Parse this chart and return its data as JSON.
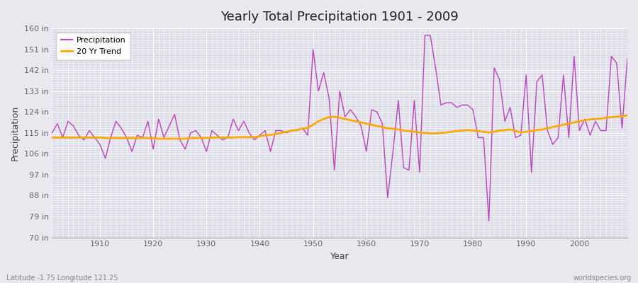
{
  "title": "Yearly Total Precipitation 1901 - 2009",
  "xlabel": "Year",
  "ylabel": "Precipitation",
  "bottom_left_label": "Latitude -1.75 Longitude 121.25",
  "bottom_right_label": "worldspecies.org",
  "precip_color": "#bb44bb",
  "trend_color": "#ffaa00",
  "fig_bg_color": "#e8e8ee",
  "plot_bg_color": "#dcdce8",
  "grid_color": "#ffffff",
  "ytick_labels": [
    "70 in",
    "79 in",
    "88 in",
    "97 in",
    "106 in",
    "115 in",
    "124 in",
    "133 in",
    "142 in",
    "151 in",
    "160 in"
  ],
  "ytick_values": [
    70,
    79,
    88,
    97,
    106,
    115,
    124,
    133,
    142,
    151,
    160
  ],
  "ylim": [
    70,
    160
  ],
  "xlim": [
    1901,
    2009
  ],
  "years": [
    1901,
    1902,
    1903,
    1904,
    1905,
    1906,
    1907,
    1908,
    1909,
    1910,
    1911,
    1912,
    1913,
    1914,
    1915,
    1916,
    1917,
    1918,
    1919,
    1920,
    1921,
    1922,
    1923,
    1924,
    1925,
    1926,
    1927,
    1928,
    1929,
    1930,
    1931,
    1932,
    1933,
    1934,
    1935,
    1936,
    1937,
    1938,
    1939,
    1940,
    1941,
    1942,
    1943,
    1944,
    1945,
    1946,
    1947,
    1948,
    1949,
    1950,
    1951,
    1952,
    1953,
    1954,
    1955,
    1956,
    1957,
    1958,
    1959,
    1960,
    1961,
    1962,
    1963,
    1964,
    1965,
    1966,
    1967,
    1968,
    1969,
    1970,
    1971,
    1972,
    1973,
    1974,
    1975,
    1976,
    1977,
    1978,
    1979,
    1980,
    1981,
    1982,
    1983,
    1984,
    1985,
    1986,
    1987,
    1988,
    1989,
    1990,
    1991,
    1992,
    1993,
    1994,
    1995,
    1996,
    1997,
    1998,
    1999,
    2000,
    2001,
    2002,
    2003,
    2004,
    2005,
    2006,
    2007,
    2008,
    2009
  ],
  "precip": [
    115,
    119,
    113,
    120,
    118,
    114,
    112,
    116,
    113,
    110,
    104,
    113,
    120,
    117,
    113,
    107,
    114,
    113,
    120,
    108,
    121,
    113,
    118,
    123,
    112,
    108,
    115,
    116,
    113,
    107,
    116,
    114,
    112,
    113,
    121,
    116,
    120,
    115,
    112,
    114,
    116,
    107,
    116,
    116,
    115,
    116,
    116,
    117,
    114,
    151,
    133,
    141,
    130,
    99,
    133,
    122,
    125,
    122,
    118,
    107,
    125,
    124,
    119,
    87,
    107,
    129,
    100,
    99,
    129,
    98,
    157,
    157,
    143,
    127,
    128,
    128,
    126,
    127,
    127,
    125,
    113,
    113,
    77,
    143,
    138,
    120,
    126,
    113,
    114,
    140,
    98,
    137,
    140,
    116,
    110,
    113,
    140,
    113,
    148,
    116,
    121,
    114,
    120,
    116,
    116,
    148,
    145,
    117,
    147
  ],
  "trend": [
    113.0,
    113.0,
    113.0,
    113.0,
    113.0,
    113.0,
    113.0,
    113.0,
    113.0,
    113.0,
    112.8,
    112.8,
    112.8,
    112.8,
    112.8,
    112.8,
    112.8,
    112.8,
    112.8,
    112.8,
    112.5,
    112.5,
    112.5,
    112.5,
    112.5,
    112.5,
    112.8,
    112.8,
    112.8,
    112.8,
    113.0,
    113.0,
    113.0,
    113.0,
    113.0,
    113.2,
    113.2,
    113.2,
    113.2,
    113.5,
    114.0,
    114.2,
    114.5,
    115.0,
    115.5,
    116.0,
    116.3,
    116.8,
    117.2,
    118.5,
    120.0,
    121.0,
    121.8,
    122.0,
    121.5,
    121.0,
    120.5,
    120.0,
    119.5,
    119.0,
    118.5,
    118.0,
    117.5,
    117.0,
    116.8,
    116.5,
    116.0,
    115.8,
    115.5,
    115.2,
    115.0,
    114.8,
    114.8,
    115.0,
    115.2,
    115.5,
    115.8,
    116.0,
    116.2,
    116.0,
    115.8,
    115.5,
    115.2,
    115.5,
    116.0,
    116.2,
    116.5,
    115.8,
    115.2,
    115.5,
    115.8,
    116.2,
    116.5,
    117.0,
    117.5,
    118.0,
    118.5,
    119.0,
    119.5,
    120.0,
    120.5,
    120.8,
    121.0,
    121.2,
    121.5,
    121.8,
    122.0,
    122.2,
    122.5
  ]
}
